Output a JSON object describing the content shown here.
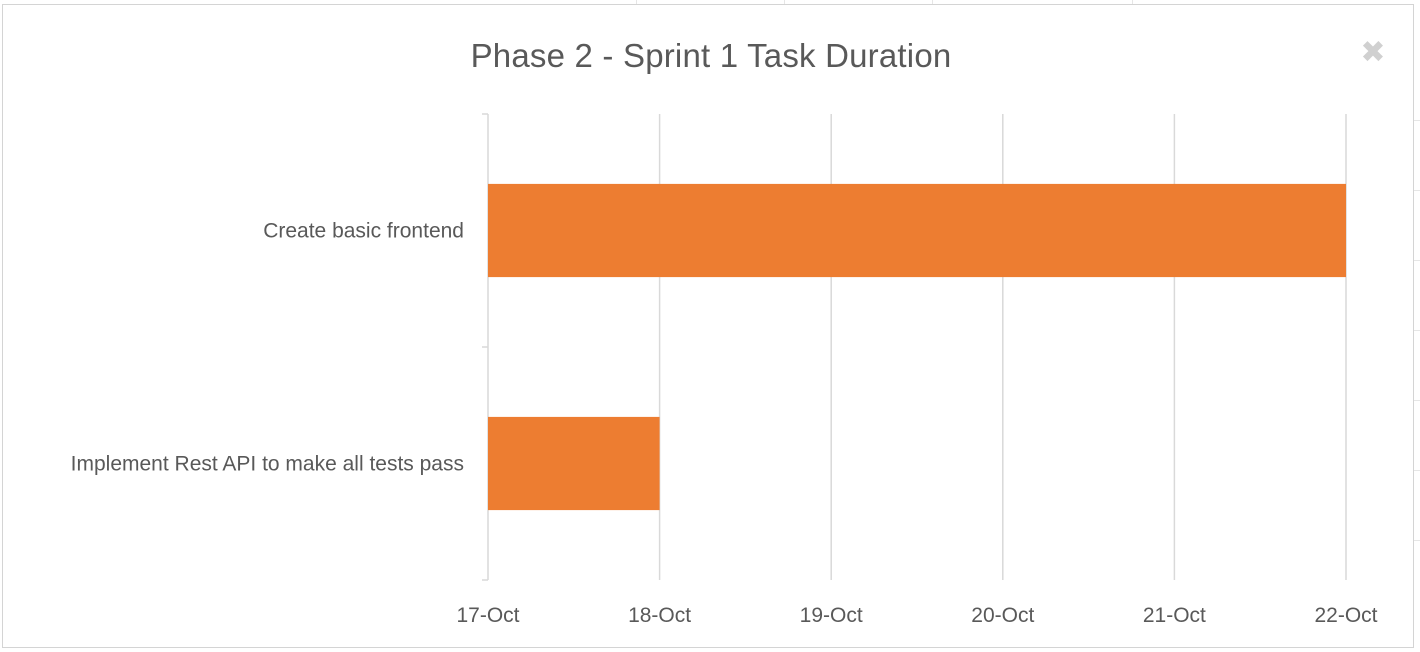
{
  "chart_data": {
    "type": "bar",
    "orientation": "horizontal",
    "title": "Phase 2 - Sprint 1 Task Duration",
    "categories": [
      "Create basic frontend",
      "Implement Rest API to make all tests pass"
    ],
    "start": [
      "17-Oct",
      "17-Oct"
    ],
    "end": [
      "22-Oct",
      "18-Oct"
    ],
    "values_days": [
      5,
      1
    ],
    "x_ticks": [
      "17-Oct",
      "18-Oct",
      "19-Oct",
      "20-Oct",
      "21-Oct",
      "22-Oct"
    ],
    "xlim": [
      "17-Oct",
      "22-Oct"
    ],
    "grid": true,
    "legend": "none",
    "bar_color": "#ED7D31",
    "gridline_color": "#D9D9D9",
    "text_color": "#595959"
  },
  "close_icon": "close-icon"
}
